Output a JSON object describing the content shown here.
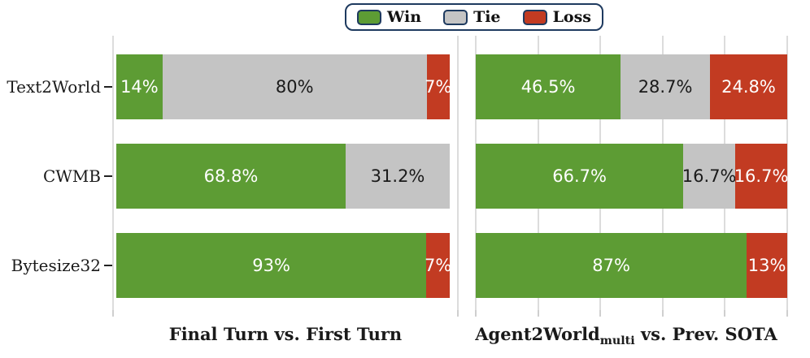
{
  "colors": {
    "win": "#5d9c34",
    "tie": "#c4c4c4",
    "loss": "#c23b22",
    "legend_border": "#1e3a5f",
    "grid": "#dcdcdc",
    "label_on_dark": "#ffffff",
    "label_on_light": "#1a1a1a"
  },
  "legend": {
    "items": [
      {
        "name": "win",
        "label": "Win"
      },
      {
        "name": "tie",
        "label": "Tie"
      },
      {
        "name": "loss",
        "label": "Loss"
      }
    ]
  },
  "chart_data": [
    {
      "type": "bar",
      "orientation": "horizontal",
      "stacked": true,
      "title": "Final Turn vs. First Turn",
      "categories": [
        "Text2World",
        "CWMB",
        "Bytesize32"
      ],
      "series": [
        {
          "name": "Win",
          "color_key": "win",
          "values": [
            14,
            68.8,
            93
          ],
          "labels": [
            "14%",
            "68.8%",
            "93%"
          ]
        },
        {
          "name": "Tie",
          "color_key": "tie",
          "values": [
            80,
            31.2,
            0
          ],
          "labels": [
            "80%",
            "31.2%",
            ""
          ]
        },
        {
          "name": "Loss",
          "color_key": "loss",
          "values": [
            7,
            0,
            7
          ],
          "labels": [
            "7%",
            "",
            "7%"
          ]
        }
      ],
      "xlim": [
        0,
        100
      ],
      "gridline_percents": [
        0,
        100
      ],
      "legend_position": "top-center",
      "grid": true
    },
    {
      "type": "bar",
      "orientation": "horizontal",
      "stacked": true,
      "title": "Agent2World_multi vs. Prev. SOTA",
      "title_parts": {
        "main": "Agent2World",
        "subscript": "multi",
        "rest": " vs. Prev. SOTA"
      },
      "categories": [
        "Text2World",
        "CWMB",
        "Bytesize32"
      ],
      "series": [
        {
          "name": "Win",
          "color_key": "win",
          "values": [
            46.5,
            66.7,
            87
          ],
          "labels": [
            "46.5%",
            "66.7%",
            "87%"
          ]
        },
        {
          "name": "Tie",
          "color_key": "tie",
          "values": [
            28.7,
            16.7,
            0
          ],
          "labels": [
            "28.7%",
            "16.7%",
            ""
          ]
        },
        {
          "name": "Loss",
          "color_key": "loss",
          "values": [
            24.8,
            16.7,
            13
          ],
          "labels": [
            "24.8%",
            "16.7%",
            "13%"
          ]
        }
      ],
      "xlim": [
        0,
        100
      ],
      "gridline_percents": [
        0,
        20,
        40,
        60,
        80,
        100
      ],
      "grid": true
    }
  ]
}
